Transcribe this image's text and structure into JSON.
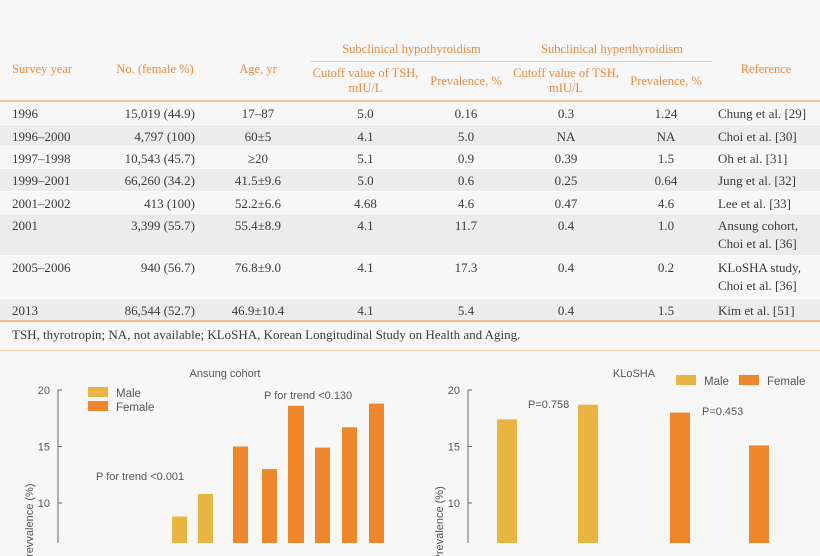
{
  "table": {
    "group_headers": {
      "hypo": "Subclinical hypothyroidism",
      "hyper": "Subclinical hyperthyroidism"
    },
    "headers": [
      "Survey year",
      "No. (female %)",
      "Age, yr",
      "Cutoff value of TSH, mIU/L",
      "Prevalence, %",
      "Cutoff value of TSH, mIU/L",
      "Prevalence, %",
      "Reference"
    ],
    "rows": [
      [
        "1996",
        "15,019 (44.9)",
        "17–87",
        "5.0",
        "0.16",
        "0.3",
        "1.24",
        "Chung et al. [29]"
      ],
      [
        "1996–2000",
        "4,797 (100)",
        "60±5",
        "4.1",
        "5.0",
        "NA",
        "NA",
        "Choi et al. [30]"
      ],
      [
        "1997–1998",
        "10,543 (45.7)",
        "≥20",
        "5.1",
        "0.9",
        "0.39",
        "1.5",
        "Oh et al. [31]"
      ],
      [
        "1999–2001",
        "66,260 (34.2)",
        "41.5±9.6",
        "5.0",
        "0.6",
        "0.25",
        "0.64",
        "Jung et al. [32]"
      ],
      [
        "2001–2002",
        "413 (100)",
        "52.2±6.6",
        "4.68",
        "4.6",
        "0.47",
        "4.6",
        "Lee et al. [33]"
      ],
      [
        "2001",
        "3,399 (55.7)",
        "55.4±8.9",
        "4.1",
        "11.7",
        "0.4",
        "1.0",
        "Ansung cohort, Choi et al. [36]"
      ],
      [
        "2005–2006",
        "940 (56.7)",
        "76.8±9.0",
        "4.1",
        "17.3",
        "0.4",
        "0.2",
        "KLoSHA study, Choi et al. [36]"
      ],
      [
        "2013",
        "86,544 (52.7)",
        "46.9±10.4",
        "4.1",
        "5.4",
        "0.4",
        "1.5",
        "Kim et al. [51]"
      ]
    ],
    "footnote": "TSH, thyrotropin; NA, not available; KLoSHA, Korean Longitudinal Study on Health and Aging."
  },
  "colors": {
    "male": "#e9b440",
    "female": "#f0862a",
    "header": "#ee8a3c"
  },
  "chart_data": [
    {
      "type": "bar",
      "title": "Ansung cohort",
      "ylabel": "Prevvalence (%)",
      "yticks": [
        10,
        15,
        20
      ],
      "ylim": [
        6.5,
        20
      ],
      "legend": [
        "Male",
        "Female"
      ],
      "legend_position": "top-left",
      "annotations": [
        "P for trend <0.001",
        "P for trend <0.130"
      ],
      "series": [
        {
          "name": "Male",
          "values": [
            8.8,
            10.8
          ]
        },
        {
          "name": "Female",
          "values": [
            15.0,
            13.0,
            18.6,
            14.9,
            16.7,
            18.8
          ]
        }
      ]
    },
    {
      "type": "bar",
      "title": "KLoSHA",
      "ylabel": "Prevalence (%)",
      "yticks": [
        10,
        15,
        20
      ],
      "ylim": [
        6.5,
        20
      ],
      "legend": [
        "Male",
        "Female"
      ],
      "legend_position": "top-right",
      "annotations": [
        "P=0.758",
        "P=0.453"
      ],
      "series": [
        {
          "name": "Male",
          "values": [
            17.4,
            18.7
          ]
        },
        {
          "name": "Female",
          "values": [
            18.0,
            15.1
          ]
        }
      ]
    }
  ]
}
